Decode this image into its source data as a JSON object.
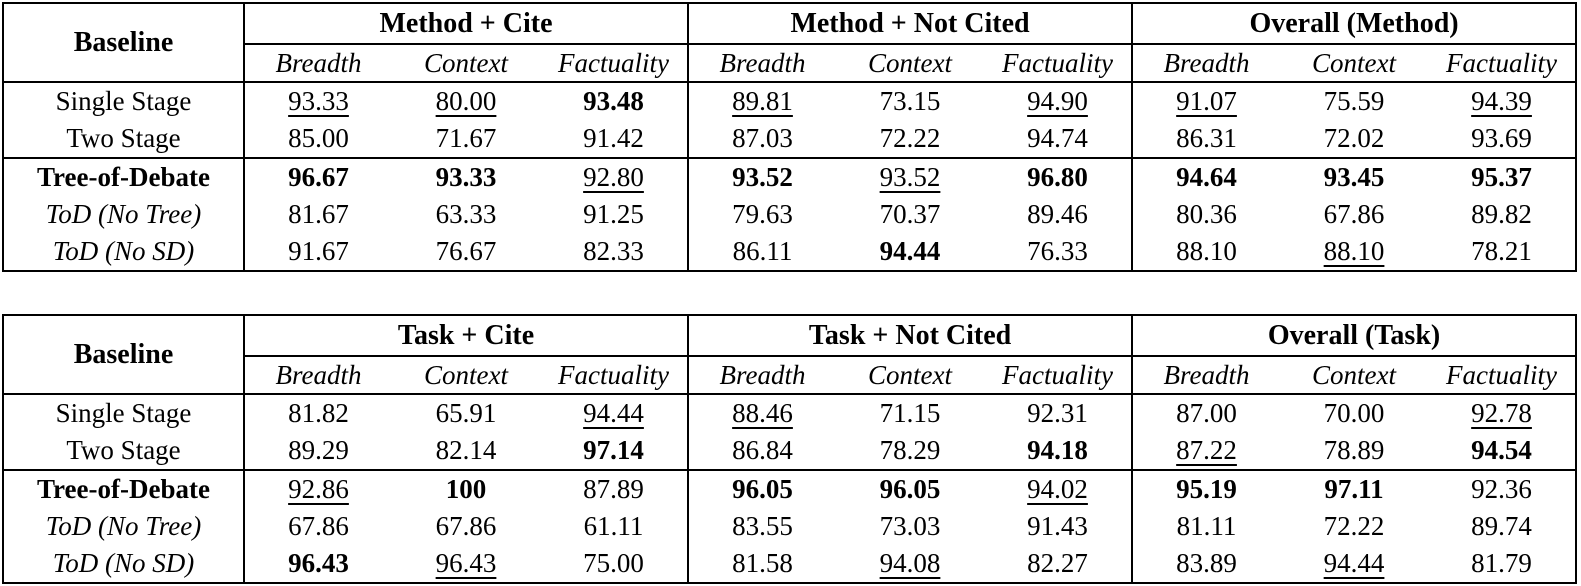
{
  "page": {
    "background_color": "#ffffff",
    "text_color": "#000000"
  },
  "tables": [
    {
      "name": "method-results",
      "corner_label": "Baseline",
      "groups": [
        {
          "label": "Method + Cite"
        },
        {
          "label": "Method + Not Cited"
        },
        {
          "label": "Overall (Method)"
        }
      ],
      "subheaders": [
        "Breadth",
        "Context",
        "Factuality"
      ],
      "rows": [
        {
          "label": "Single Stage",
          "style": "plain",
          "sep": false,
          "cells": [
            {
              "v": "93.33",
              "s": "u"
            },
            {
              "v": "80.00",
              "s": "u"
            },
            {
              "v": "93.48",
              "s": "b"
            },
            {
              "v": "89.81",
              "s": "u"
            },
            {
              "v": "73.15",
              "s": ""
            },
            {
              "v": "94.90",
              "s": "u"
            },
            {
              "v": "91.07",
              "s": "u"
            },
            {
              "v": "75.59",
              "s": ""
            },
            {
              "v": "94.39",
              "s": "u"
            }
          ]
        },
        {
          "label": "Two Stage",
          "style": "plain",
          "sep": false,
          "cells": [
            {
              "v": "85.00",
              "s": ""
            },
            {
              "v": "71.67",
              "s": ""
            },
            {
              "v": "91.42",
              "s": ""
            },
            {
              "v": "87.03",
              "s": ""
            },
            {
              "v": "72.22",
              "s": ""
            },
            {
              "v": "94.74",
              "s": ""
            },
            {
              "v": "86.31",
              "s": ""
            },
            {
              "v": "72.02",
              "s": ""
            },
            {
              "v": "93.69",
              "s": ""
            }
          ]
        },
        {
          "label": "Tree-of-Debate",
          "style": "bold",
          "sep": true,
          "cells": [
            {
              "v": "96.67",
              "s": "b"
            },
            {
              "v": "93.33",
              "s": "b"
            },
            {
              "v": "92.80",
              "s": "u"
            },
            {
              "v": "93.52",
              "s": "b"
            },
            {
              "v": "93.52",
              "s": "u"
            },
            {
              "v": "96.80",
              "s": "b"
            },
            {
              "v": "94.64",
              "s": "b"
            },
            {
              "v": "93.45",
              "s": "b"
            },
            {
              "v": "95.37",
              "s": "b"
            }
          ]
        },
        {
          "label": "ToD (No Tree)",
          "style": "italic",
          "sep": false,
          "cells": [
            {
              "v": "81.67",
              "s": ""
            },
            {
              "v": "63.33",
              "s": ""
            },
            {
              "v": "91.25",
              "s": ""
            },
            {
              "v": "79.63",
              "s": ""
            },
            {
              "v": "70.37",
              "s": ""
            },
            {
              "v": "89.46",
              "s": ""
            },
            {
              "v": "80.36",
              "s": ""
            },
            {
              "v": "67.86",
              "s": ""
            },
            {
              "v": "89.82",
              "s": ""
            }
          ]
        },
        {
          "label": "ToD (No SD)",
          "style": "italic",
          "sep": false,
          "cells": [
            {
              "v": "91.67",
              "s": ""
            },
            {
              "v": "76.67",
              "s": ""
            },
            {
              "v": "82.33",
              "s": ""
            },
            {
              "v": "86.11",
              "s": ""
            },
            {
              "v": "94.44",
              "s": "b"
            },
            {
              "v": "76.33",
              "s": ""
            },
            {
              "v": "88.10",
              "s": ""
            },
            {
              "v": "88.10",
              "s": "u"
            },
            {
              "v": "78.21",
              "s": ""
            }
          ]
        }
      ]
    },
    {
      "name": "task-results",
      "corner_label": "Baseline",
      "groups": [
        {
          "label": "Task + Cite"
        },
        {
          "label": "Task + Not Cited"
        },
        {
          "label": "Overall (Task)"
        }
      ],
      "subheaders": [
        "Breadth",
        "Context",
        "Factuality"
      ],
      "rows": [
        {
          "label": "Single Stage",
          "style": "plain",
          "sep": false,
          "cells": [
            {
              "v": "81.82",
              "s": ""
            },
            {
              "v": "65.91",
              "s": ""
            },
            {
              "v": "94.44",
              "s": "u"
            },
            {
              "v": "88.46",
              "s": "u"
            },
            {
              "v": "71.15",
              "s": ""
            },
            {
              "v": "92.31",
              "s": ""
            },
            {
              "v": "87.00",
              "s": ""
            },
            {
              "v": "70.00",
              "s": ""
            },
            {
              "v": "92.78",
              "s": "u"
            }
          ]
        },
        {
          "label": "Two Stage",
          "style": "plain",
          "sep": false,
          "cells": [
            {
              "v": "89.29",
              "s": ""
            },
            {
              "v": "82.14",
              "s": ""
            },
            {
              "v": "97.14",
              "s": "b"
            },
            {
              "v": "86.84",
              "s": ""
            },
            {
              "v": "78.29",
              "s": ""
            },
            {
              "v": "94.18",
              "s": "b"
            },
            {
              "v": "87.22",
              "s": "u"
            },
            {
              "v": "78.89",
              "s": ""
            },
            {
              "v": "94.54",
              "s": "b"
            }
          ]
        },
        {
          "label": "Tree-of-Debate",
          "style": "bold",
          "sep": true,
          "cells": [
            {
              "v": "92.86",
              "s": "u"
            },
            {
              "v": "100",
              "s": "b"
            },
            {
              "v": "87.89",
              "s": ""
            },
            {
              "v": "96.05",
              "s": "b"
            },
            {
              "v": "96.05",
              "s": "b"
            },
            {
              "v": "94.02",
              "s": "u"
            },
            {
              "v": "95.19",
              "s": "b"
            },
            {
              "v": "97.11",
              "s": "b"
            },
            {
              "v": "92.36",
              "s": ""
            }
          ]
        },
        {
          "label": "ToD (No Tree)",
          "style": "italic",
          "sep": false,
          "cells": [
            {
              "v": "67.86",
              "s": ""
            },
            {
              "v": "67.86",
              "s": ""
            },
            {
              "v": "61.11",
              "s": ""
            },
            {
              "v": "83.55",
              "s": ""
            },
            {
              "v": "73.03",
              "s": ""
            },
            {
              "v": "91.43",
              "s": ""
            },
            {
              "v": "81.11",
              "s": ""
            },
            {
              "v": "72.22",
              "s": ""
            },
            {
              "v": "89.74",
              "s": ""
            }
          ]
        },
        {
          "label": "ToD (No SD)",
          "style": "italic",
          "sep": false,
          "cells": [
            {
              "v": "96.43",
              "s": "b"
            },
            {
              "v": "96.43",
              "s": "u"
            },
            {
              "v": "75.00",
              "s": ""
            },
            {
              "v": "81.58",
              "s": ""
            },
            {
              "v": "94.08",
              "s": "u"
            },
            {
              "v": "82.27",
              "s": ""
            },
            {
              "v": "83.89",
              "s": ""
            },
            {
              "v": "94.44",
              "s": "u"
            },
            {
              "v": "81.79",
              "s": ""
            }
          ]
        }
      ]
    }
  ]
}
